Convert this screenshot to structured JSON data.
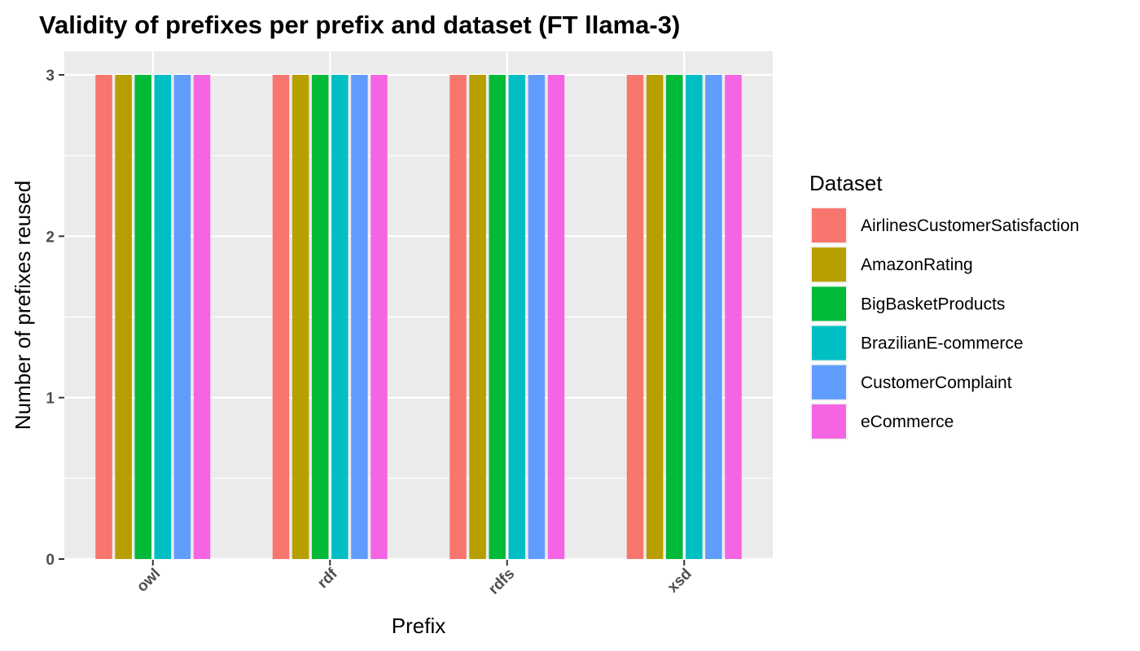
{
  "chart_data": {
    "type": "bar",
    "title": "Validity of prefixes per prefix and dataset (FT llama-3)",
    "xlabel": "Prefix",
    "ylabel": "Number of prefixes reused",
    "categories": [
      "owl",
      "rdf",
      "rdfs",
      "xsd"
    ],
    "ylim": [
      0,
      3.15
    ],
    "yticks": [
      0,
      1,
      2,
      3
    ],
    "grid": true,
    "legend_title": "Dataset",
    "legend_position": "right",
    "series": [
      {
        "name": "AirlinesCustomerSatisfaction",
        "color": "#F8766D",
        "values": [
          3,
          3,
          3,
          3
        ]
      },
      {
        "name": "AmazonRating",
        "color": "#B79F00",
        "values": [
          3,
          3,
          3,
          3
        ]
      },
      {
        "name": "BigBasketProducts",
        "color": "#00BA38",
        "values": [
          3,
          3,
          3,
          3
        ]
      },
      {
        "name": "BrazilianE-commerce",
        "color": "#00BFC4",
        "values": [
          3,
          3,
          3,
          3
        ]
      },
      {
        "name": "CustomerComplaint",
        "color": "#619CFF",
        "values": [
          3,
          3,
          3,
          3
        ]
      },
      {
        "name": "eCommerce",
        "color": "#F564E3",
        "values": [
          3,
          3,
          3,
          3
        ]
      }
    ]
  }
}
